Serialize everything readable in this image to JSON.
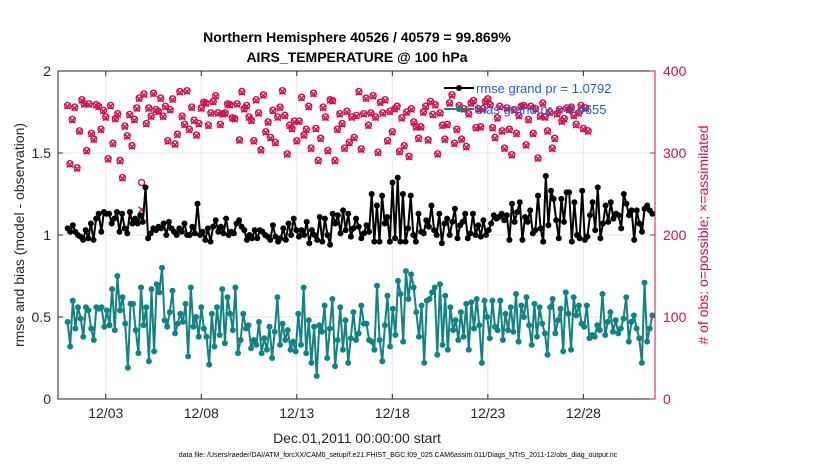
{
  "chart_data": {
    "type": "line",
    "title": [
      "Northern Hemisphere 40526 / 40579 = 99.869%",
      "AIRS_TEMPERATURE @ 100 hPa"
    ],
    "xlabel": "Dec.01,2011 00:00:00 start",
    "ylabel": "rmse and bias (model - observation)",
    "ylabel_right": "# of obs: o=possible; ×=assimilated",
    "footer": "data file: /Users/raeder/DAI/ATM_forcXX/CAM6_setup/f.e21.FHIST_BGC.f09_025.CAM6assim.011/Diags_NTrS_2011-12/obs_diag_output.nc",
    "xlim": [
      0.5,
      31.75
    ],
    "ylim": [
      0,
      2
    ],
    "ylim_right": [
      0,
      400
    ],
    "xticks": [
      3,
      8,
      13,
      18,
      23,
      28
    ],
    "xtick_labels": [
      "12/03",
      "12/08",
      "12/13",
      "12/18",
      "12/23",
      "12/28"
    ],
    "yticks": [
      0,
      0.5,
      1,
      1.5,
      2
    ],
    "ytick_labels": [
      "0",
      "0.5",
      "1",
      "1.5",
      "2"
    ],
    "yticks_right": [
      0,
      100,
      200,
      300,
      400
    ],
    "ytick_labels_right": [
      "0",
      "100",
      "200",
      "300",
      "400"
    ],
    "legend_position": "top-right",
    "colors": {
      "rmse": "#000000",
      "bias": "#138282",
      "obs": "#d0104c"
    },
    "series": [
      {
        "name": "rmse grand pr = 1.0792",
        "axis": "left",
        "values": [
          1.04,
          1.02,
          1.06,
          1.02,
          1.0,
          0.99,
          0.97,
          1.03,
          0.98,
          1.07,
          0.97,
          1.1,
          1.13,
          1.02,
          1.14,
          1.13,
          1.13,
          1.07,
          1.1,
          1.14,
          1.02,
          1.13,
          1.04,
          1.01,
          1.14,
          1.07,
          1.1,
          1.07,
          1.12,
          1.08,
          1.29,
          0.98,
          1.01,
          1.04,
          1.03,
          1.05,
          1.04,
          1.07,
          1.0,
          1.08,
          1.04,
          1.02,
          1.0,
          1.04,
          1.02,
          1.07,
          1.0,
          1.0,
          1.05,
          1.01,
          1.19,
          1.0,
          1.02,
          0.97,
          1.04,
          0.96,
          1.05,
          1.09,
          1.02,
          1.05,
          1.01,
          1.1,
          1.0,
          1.02,
          1.01,
          1.07,
          1.09,
          1.05,
          1.03,
          0.97,
          1.0,
          0.98,
          1.03,
          0.98,
          1.03,
          1.02,
          1.0,
          0.99,
          0.97,
          1.06,
          0.99,
          0.96,
          0.98,
          1.04,
          0.97,
          1.07,
          1.0,
          1.1,
          1.03,
          0.99,
          1.03,
          1.0,
          1.08,
          0.95,
          1.03,
          1.0,
          0.97,
          1.11,
          0.96,
          1.1,
          1.0,
          0.94,
          1.13,
          1.07,
          1.12,
          1.01,
          1.15,
          1.03,
          1.13,
          0.99,
          1.04,
          1.1,
          1.05,
          0.98,
          1.01,
          1.06,
          1.02,
          1.25,
          0.96,
          1.18,
          0.96,
          1.24,
          1.07,
          1.11,
          0.96,
          1.32,
          0.98,
          1.35,
          0.96,
          1.25,
          0.96,
          1.04,
          1.24,
          1.0,
          0.96,
          1.13,
          1.02,
          1.01,
          1.09,
          1.05,
          1.18,
          1.03,
          1.0,
          1.13,
          0.95,
          1.07,
          1.1,
          1.0,
          1.08,
          1.16,
          0.98,
          1.06,
          1.08,
          1.13,
          0.98,
          1.01,
          1.13,
          1.0,
          1.06,
          0.99,
          1.09,
          1.0,
          1.03,
          1.07,
          1.12,
          1.1,
          1.11,
          1.13,
          1.09,
          1.12,
          0.97,
          1.19,
          1.08,
          1.14,
          1.2,
          0.97,
          1.11,
          1.08,
          1.15,
          1.01,
          1.03,
          1.24,
          1.04,
          0.96,
          1.36,
          1.06,
          1.27,
          1.22,
          1.09,
          0.98,
          1.22,
          1.08,
          1.26,
          1.26,
          0.96,
          1.2,
          1.0,
          0.98,
          1.27,
          0.97,
          0.99,
          1.12,
          1.2,
          1.03,
          1.29,
          0.98,
          1.07,
          1.18,
          1.08,
          1.2,
          1.1,
          1.13,
          1.12,
          1.04,
          1.25,
          1.19,
          1.12,
          1.15,
          0.97,
          1.15,
          1.07,
          1.02,
          1.16,
          1.18,
          1.15,
          1.13
        ]
      },
      {
        "name": "bias grand pr = 0.4655",
        "axis": "left",
        "values": [
          0.47,
          0.32,
          0.6,
          0.43,
          0.56,
          0.49,
          0.38,
          0.56,
          0.54,
          0.43,
          0.36,
          0.56,
          0.55,
          0.56,
          0.44,
          0.54,
          0.45,
          0.67,
          0.42,
          0.75,
          0.54,
          0.62,
          0.46,
          0.19,
          0.58,
          0.58,
          0.42,
          0.28,
          0.68,
          0.45,
          0.56,
          0.23,
          0.67,
          0.29,
          0.7,
          0.65,
          0.8,
          0.48,
          0.44,
          0.53,
          0.66,
          0.4,
          0.46,
          0.52,
          0.47,
          0.58,
          0.26,
          0.68,
          0.44,
          0.5,
          0.38,
          0.56,
          0.43,
          0.38,
          0.21,
          0.52,
          0.32,
          0.56,
          0.39,
          0.67,
          0.34,
          0.62,
          0.52,
          0.42,
          0.68,
          0.28,
          0.36,
          0.52,
          0.43,
          0.45,
          0.31,
          0.36,
          0.33,
          0.47,
          0.28,
          0.37,
          0.3,
          0.44,
          0.25,
          0.41,
          0.62,
          0.33,
          0.46,
          0.36,
          0.42,
          0.3,
          0.35,
          0.29,
          0.52,
          0.33,
          0.68,
          0.28,
          0.48,
          0.22,
          0.44,
          0.14,
          0.45,
          0.41,
          0.57,
          0.25,
          0.43,
          0.61,
          0.2,
          0.36,
          0.56,
          0.3,
          0.48,
          0.22,
          0.37,
          0.53,
          0.36,
          0.4,
          0.57,
          0.46,
          0.46,
          0.36,
          0.35,
          0.3,
          0.69,
          0.36,
          0.23,
          0.45,
          0.63,
          0.32,
          0.55,
          0.39,
          0.72,
          0.64,
          0.35,
          0.78,
          0.61,
          0.76,
          0.68,
          0.53,
          0.38,
          0.57,
          0.22,
          0.6,
          0.61,
          0.65,
          0.68,
          0.27,
          0.7,
          0.33,
          0.63,
          0.3,
          0.56,
          0.42,
          0.48,
          0.36,
          0.53,
          0.38,
          0.58,
          0.3,
          0.59,
          0.43,
          0.61,
          0.45,
          0.22,
          0.6,
          0.5,
          0.37,
          0.6,
          0.44,
          0.42,
          0.6,
          0.36,
          0.52,
          0.42,
          0.56,
          0.41,
          0.64,
          0.35,
          0.57,
          0.5,
          0.62,
          0.45,
          0.33,
          0.58,
          0.38,
          0.56,
          0.46,
          0.4,
          0.27,
          0.56,
          0.61,
          0.4,
          0.48,
          0.55,
          0.29,
          0.65,
          0.52,
          0.3,
          0.62,
          0.51,
          0.57,
          0.46,
          0.44,
          0.57,
          0.37,
          0.39,
          0.38,
          0.45,
          0.42,
          0.64,
          0.39,
          0.47,
          0.53,
          0.41,
          0.48,
          0.4,
          0.43,
          0.49,
          0.62,
          0.35,
          0.47,
          0.51,
          0.43,
          0.37,
          0.22,
          0.71,
          0.35,
          0.43,
          0.51
        ]
      },
      {
        "name": "obs possible",
        "axis": "right",
        "marker": "o",
        "values": [
          358,
          287,
          341,
          356,
          282,
          327,
          365,
          360,
          303,
          360,
          324,
          317,
          359,
          357,
          329,
          352,
          344,
          293,
          358,
          312,
          342,
          348,
          291,
          270,
          333,
          321,
          347,
          309,
          341,
          355,
          367,
          264,
          372,
          336,
          355,
          345,
          373,
          353,
          351,
          367,
          345,
          357,
          315,
          353,
          366,
          311,
          323,
          375,
          345,
          335,
          376,
          329,
          356,
          340,
          322,
          336,
          355,
          362,
          361,
          334,
          349,
          363,
          370,
          349,
          335,
          348,
          349,
          360,
          359,
          343,
          342,
          360,
          316,
          375,
          354,
          358,
          344,
          340,
          315,
          365,
          349,
          304,
          371,
          326,
          338,
          319,
          352,
          313,
          344,
          356,
          376,
          346,
          299,
          334,
          330,
          339,
          315,
          339,
          368,
          322,
          329,
          357,
          306,
          373,
          330,
          291,
          318,
          356,
          344,
          303,
          365,
          364,
          291,
          329,
          348,
          336,
          306,
          351,
          313,
          344,
          319,
          346,
          375,
          305,
          348,
          367,
          334,
          349,
          370,
          344,
          301,
          362,
          349,
          365,
          315,
          351,
          326,
          354,
          357,
          302,
          343,
          309,
          350,
          296,
          354,
          338,
          332,
          318,
          332,
          350,
          357,
          316,
          363,
          347,
          359,
          299,
          349,
          334,
          317,
          335,
          361,
          371,
          312,
          329,
          358,
          317,
          354,
          308,
          348,
          361,
          364,
          331,
          354,
          332,
          354,
          363,
          366,
          359,
          331,
          319,
          343,
          357,
          327,
          306,
          355,
          329,
          298,
          353,
          324,
          346,
          357,
          358,
          310,
          341,
          357,
          324,
          354,
          294,
          345,
          361,
          344,
          327,
          350,
          306,
          318,
          348,
          353,
          339,
          342,
          355,
          353,
          356,
          346,
          335,
          349,
          358,
          330,
          355,
          327
        ]
      },
      {
        "name": "obs assimilated",
        "axis": "right",
        "marker": "x",
        "values": [
          357,
          286,
          340,
          355,
          281,
          326,
          364,
          359,
          302,
          359,
          323,
          316,
          358,
          356,
          328,
          351,
          343,
          292,
          357,
          311,
          341,
          347,
          290,
          269,
          332,
          320,
          346,
          308,
          340,
          354,
          366,
          231,
          371,
          335,
          354,
          344,
          372,
          352,
          350,
          366,
          344,
          356,
          314,
          352,
          365,
          310,
          322,
          374,
          344,
          334,
          375,
          328,
          355,
          339,
          321,
          335,
          354,
          361,
          360,
          333,
          348,
          362,
          369,
          348,
          334,
          347,
          348,
          359,
          358,
          342,
          341,
          359,
          315,
          374,
          353,
          357,
          343,
          339,
          314,
          364,
          348,
          303,
          370,
          325,
          337,
          318,
          351,
          312,
          343,
          355,
          375,
          345,
          298,
          333,
          329,
          338,
          314,
          338,
          367,
          321,
          328,
          356,
          305,
          372,
          329,
          290,
          317,
          355,
          343,
          302,
          364,
          363,
          290,
          328,
          347,
          335,
          305,
          350,
          312,
          343,
          318,
          345,
          374,
          304,
          347,
          366,
          333,
          348,
          369,
          343,
          300,
          361,
          348,
          364,
          314,
          350,
          325,
          353,
          356,
          301,
          342,
          308,
          349,
          295,
          353,
          337,
          331,
          317,
          331,
          349,
          356,
          315,
          362,
          346,
          358,
          298,
          348,
          333,
          316,
          334,
          360,
          370,
          311,
          328,
          357,
          316,
          353,
          307,
          347,
          360,
          363,
          330,
          353,
          331,
          353,
          362,
          365,
          358,
          330,
          318,
          342,
          356,
          326,
          305,
          354,
          328,
          297,
          352,
          323,
          345,
          356,
          357,
          309,
          340,
          356,
          323,
          353,
          293,
          344,
          360,
          343,
          326,
          349,
          305,
          317,
          347,
          352,
          338,
          341,
          354,
          352,
          355,
          345,
          334,
          348,
          357,
          329,
          354,
          326
        ]
      }
    ]
  }
}
